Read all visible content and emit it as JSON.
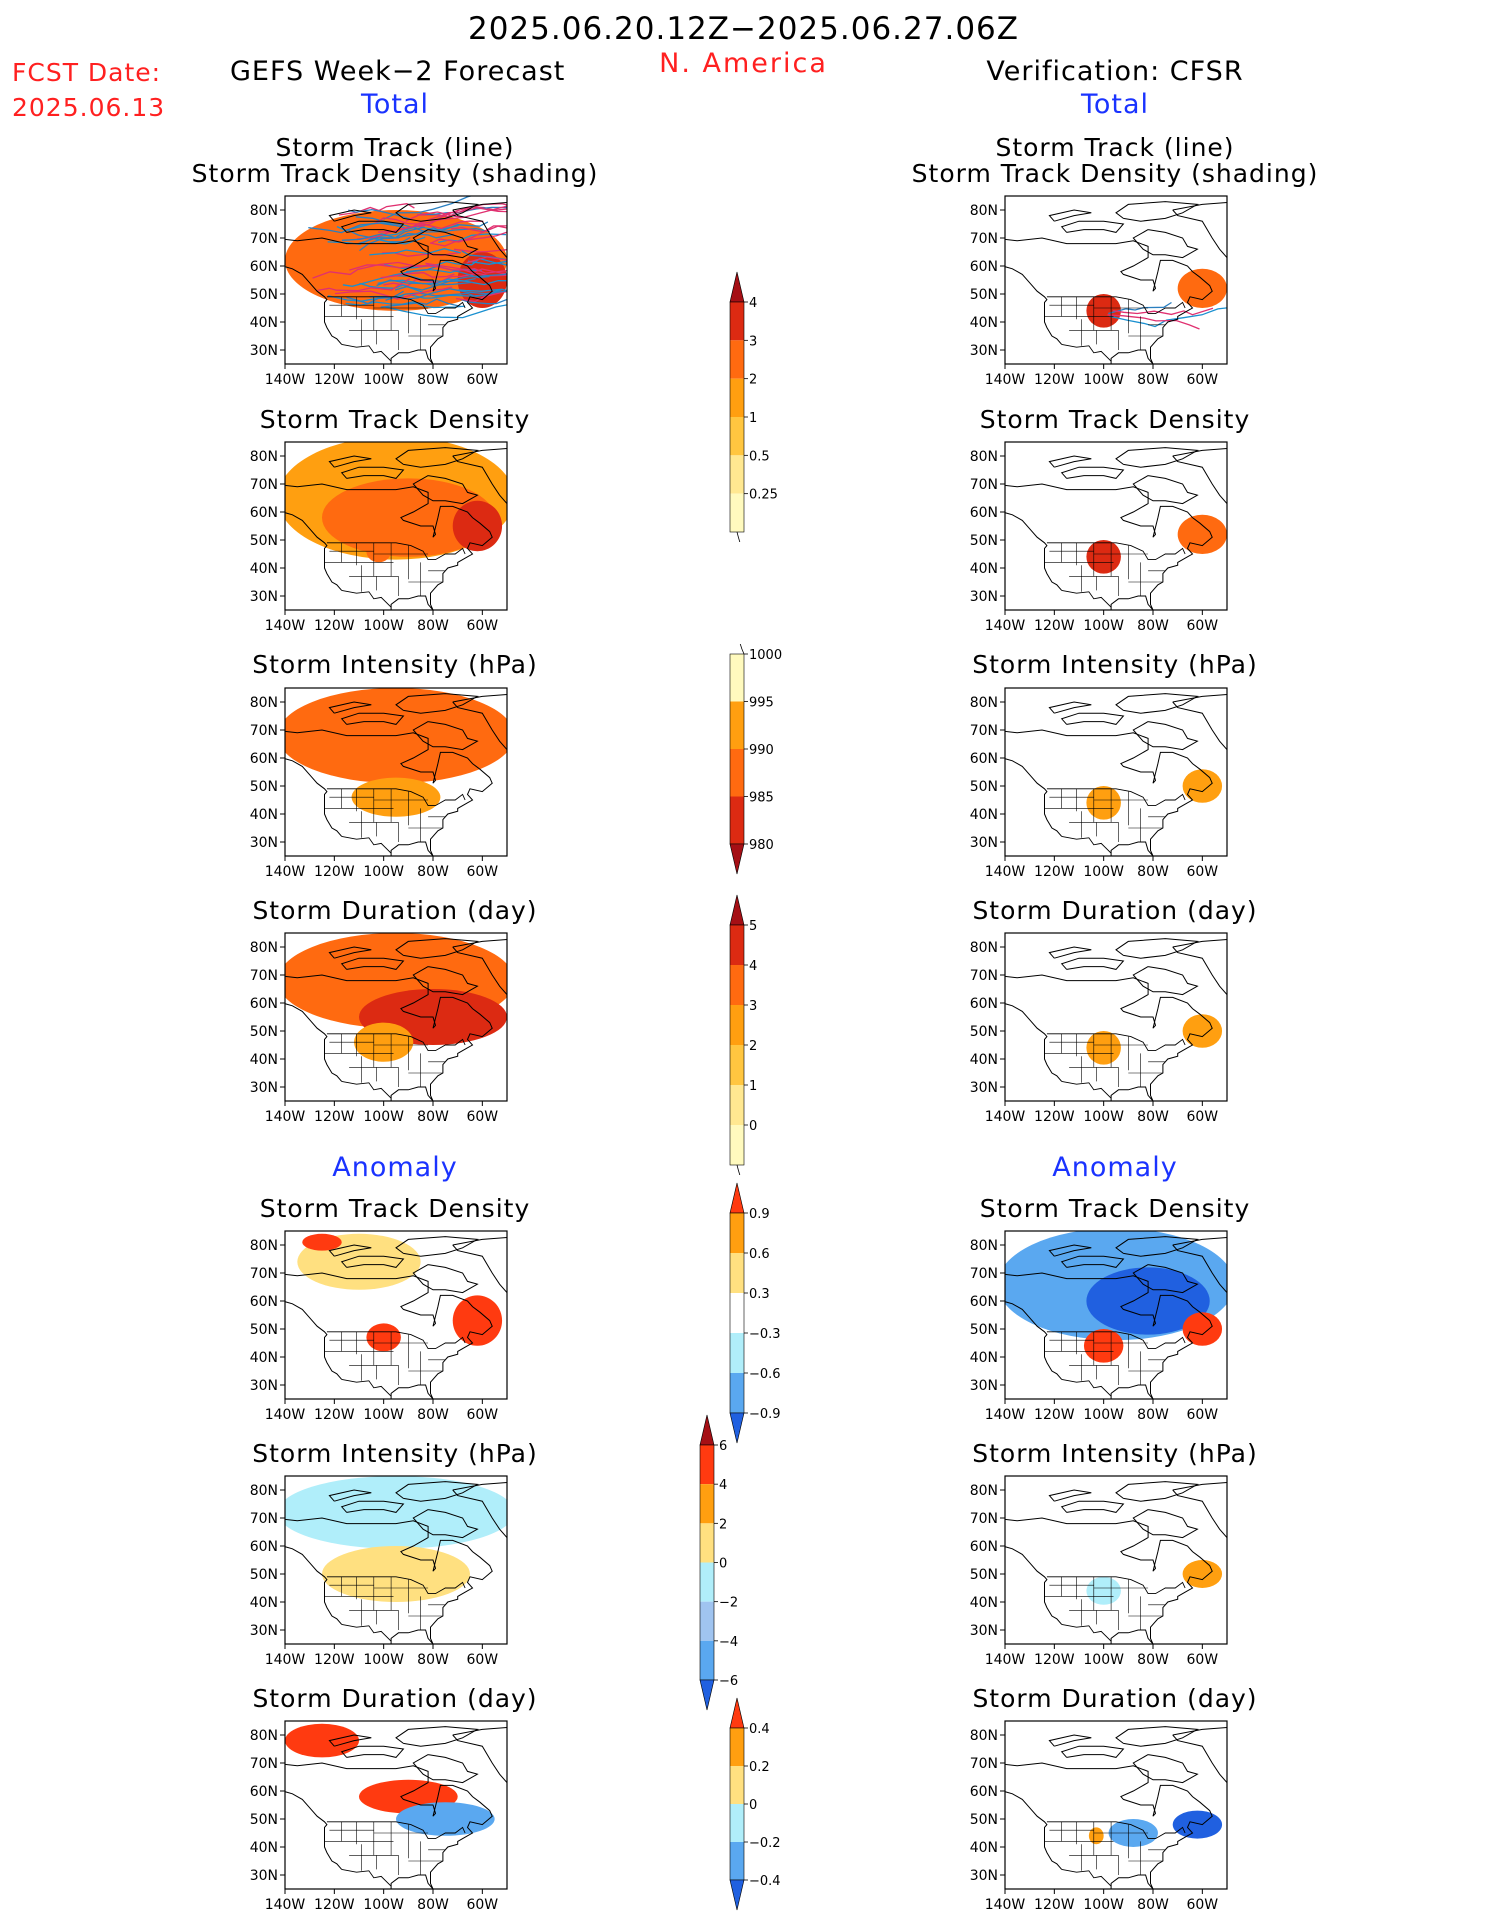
{
  "header": {
    "time_range": "2025.06.20.12Z−2025.06.27.06Z",
    "fcst_label": "FCST Date:",
    "fcst_date": "2025.06.13",
    "region": "N. America",
    "left_title": "GEFS Week−2 Forecast",
    "right_title": "Verification: CFSR",
    "total_label": "Total",
    "anomaly_label": "Anomaly"
  },
  "axes": {
    "lat_ticks": [
      "80N",
      "70N",
      "60N",
      "50N",
      "40N",
      "30N"
    ],
    "lon_ticks": [
      "140W",
      "120W",
      "100W",
      "80W",
      "60W"
    ]
  },
  "panel_titles": {
    "storm_track_line": "Storm Track (line)",
    "storm_track_density_shading": "Storm Track Density (shading)",
    "storm_track_density": "Storm Track Density",
    "storm_intensity": "Storm Intensity (hPa)",
    "storm_duration": "Storm Duration (day)"
  },
  "colorbars": [
    {
      "id": "density_total",
      "labels": [
        "4",
        "3",
        "2",
        "1",
        "0.5",
        "0.25"
      ],
      "colors": [
        "#a50f15",
        "#dc2a12",
        "#ff6a10",
        "#ff9f10",
        "#ffc640",
        "#ffe891",
        "#fffabe"
      ],
      "extend": "max"
    },
    {
      "id": "intensity_total",
      "labels": [
        "1000",
        "995",
        "990",
        "985",
        "980"
      ],
      "colors": [
        "#fffabe",
        "#ff9f10",
        "#ff6a10",
        "#dc2a12",
        "#a50f15"
      ],
      "extend": "min"
    },
    {
      "id": "duration_total",
      "labels": [
        "5",
        "4",
        "3",
        "2",
        "1",
        "0"
      ],
      "colors": [
        "#a50f15",
        "#dc2a12",
        "#ff6a10",
        "#ff9f10",
        "#ffc640",
        "#ffe891",
        "#fffabe"
      ],
      "extend": "max"
    },
    {
      "id": "density_anom",
      "labels": [
        "0.9",
        "0.6",
        "0.3",
        "−0.3",
        "−0.6",
        "−0.9"
      ],
      "colors": [
        "#ff3a10",
        "#ff9f10",
        "#ffe080",
        "#ffffff",
        "#b0eefa",
        "#5aa8f0",
        "#2060e0"
      ],
      "extend": "both"
    },
    {
      "id": "intensity_anom",
      "labels": [
        "6",
        "4",
        "2",
        "0",
        "−2",
        "−4",
        "−6"
      ],
      "colors": [
        "#a50f15",
        "#ff3a10",
        "#ff9f10",
        "#ffe080",
        "#b0eefa",
        "#a0c4f0",
        "#5aa8f0",
        "#2060e0"
      ],
      "extend": "both"
    },
    {
      "id": "duration_anom",
      "labels": [
        "0.4",
        "0.2",
        "0",
        "−0.2",
        "−0.4"
      ],
      "colors": [
        "#ff3a10",
        "#ff9f10",
        "#ffe080",
        "#b0eefa",
        "#5aa8f0",
        "#2060e0"
      ],
      "extend": "both"
    }
  ],
  "chart_data": [
    {
      "type": "heatmap",
      "title": "Storm Track (line) Storm Track Density (shading)",
      "column": "GEFS Week−2 Forecast",
      "section": "Total",
      "xlim": [
        -140,
        -50
      ],
      "ylim": [
        25,
        85
      ],
      "regions": [
        {
          "lon": -95,
          "lat": 62,
          "rx": 45,
          "ry": 18,
          "value": 2
        },
        {
          "lon": -60,
          "lat": 55,
          "rx": 10,
          "ry": 10,
          "value": 3
        }
      ],
      "tracks": "many"
    },
    {
      "type": "heatmap",
      "title": "Storm Track Density",
      "column": "GEFS Week−2 Forecast",
      "section": "Total",
      "xlim": [
        -140,
        -50
      ],
      "ylim": [
        25,
        85
      ],
      "regions": [
        {
          "lon": -95,
          "lat": 65,
          "rx": 48,
          "ry": 22,
          "value": 1.5
        },
        {
          "lon": -90,
          "lat": 58,
          "rx": 35,
          "ry": 14,
          "value": 2.5
        },
        {
          "lon": -62,
          "lat": 55,
          "rx": 10,
          "ry": 9,
          "value": 3.5
        },
        {
          "lon": -102,
          "lat": 46,
          "rx": 5,
          "ry": 4,
          "value": 2.5
        }
      ]
    },
    {
      "type": "heatmap",
      "title": "Storm Intensity (hPa)",
      "column": "GEFS Week−2 Forecast",
      "section": "Total",
      "xlim": [
        -140,
        -50
      ],
      "ylim": [
        25,
        85
      ],
      "regions": [
        {
          "lon": -95,
          "lat": 68,
          "rx": 48,
          "ry": 17,
          "value": 992
        },
        {
          "lon": -95,
          "lat": 46,
          "rx": 18,
          "ry": 7,
          "value": 997
        }
      ]
    },
    {
      "type": "heatmap",
      "title": "Storm Duration (day)",
      "column": "GEFS Week−2 Forecast",
      "section": "Total",
      "xlim": [
        -140,
        -50
      ],
      "ylim": [
        25,
        85
      ],
      "regions": [
        {
          "lon": -95,
          "lat": 68,
          "rx": 48,
          "ry": 17,
          "value": 3.5
        },
        {
          "lon": -80,
          "lat": 55,
          "rx": 30,
          "ry": 10,
          "value": 4.2
        },
        {
          "lon": -100,
          "lat": 46,
          "rx": 12,
          "ry": 7,
          "value": 2.5
        }
      ]
    },
    {
      "type": "heatmap",
      "title": "Storm Track Density",
      "column": "GEFS Week−2 Forecast",
      "section": "Anomaly",
      "xlim": [
        -140,
        -50
      ],
      "ylim": [
        25,
        85
      ],
      "regions": [
        {
          "lon": -110,
          "lat": 74,
          "rx": 25,
          "ry": 10,
          "value": 0.45
        },
        {
          "lon": -125,
          "lat": 81,
          "rx": 8,
          "ry": 3,
          "value": 1.0
        },
        {
          "lon": -100,
          "lat": 47,
          "rx": 7,
          "ry": 5,
          "value": 1.0
        },
        {
          "lon": -62,
          "lat": 53,
          "rx": 10,
          "ry": 9,
          "value": 1.0
        }
      ]
    },
    {
      "type": "heatmap",
      "title": "Storm Intensity (hPa)",
      "column": "GEFS Week−2 Forecast",
      "section": "Anomaly",
      "xlim": [
        -140,
        -50
      ],
      "ylim": [
        25,
        85
      ],
      "regions": [
        {
          "lon": -95,
          "lat": 72,
          "rx": 48,
          "ry": 13,
          "value": -1
        },
        {
          "lon": -95,
          "lat": 50,
          "rx": 30,
          "ry": 10,
          "value": 1
        }
      ]
    },
    {
      "type": "heatmap",
      "title": "Storm Duration (day)",
      "column": "GEFS Week−2 Forecast",
      "section": "Anomaly",
      "xlim": [
        -140,
        -50
      ],
      "ylim": [
        25,
        85
      ],
      "regions": [
        {
          "lon": -125,
          "lat": 78,
          "rx": 15,
          "ry": 6,
          "value": 0.5
        },
        {
          "lon": -90,
          "lat": 58,
          "rx": 20,
          "ry": 6,
          "value": 0.5
        },
        {
          "lon": -75,
          "lat": 50,
          "rx": 20,
          "ry": 6,
          "value": -0.3
        }
      ]
    },
    {
      "type": "heatmap",
      "title": "Storm Track (line) Storm Track Density (shading)",
      "column": "Verification: CFSR",
      "section": "Total",
      "xlim": [
        -140,
        -50
      ],
      "ylim": [
        25,
        85
      ],
      "regions": [
        {
          "lon": -100,
          "lat": 44,
          "rx": 7,
          "ry": 6,
          "value": 3.5
        },
        {
          "lon": -60,
          "lat": 52,
          "rx": 10,
          "ry": 7,
          "value": 2
        }
      ],
      "tracks": "few"
    },
    {
      "type": "heatmap",
      "title": "Storm Track Density",
      "column": "Verification: CFSR",
      "section": "Total",
      "xlim": [
        -140,
        -50
      ],
      "ylim": [
        25,
        85
      ],
      "regions": [
        {
          "lon": -100,
          "lat": 44,
          "rx": 7,
          "ry": 6,
          "value": 3.5
        },
        {
          "lon": -60,
          "lat": 52,
          "rx": 10,
          "ry": 7,
          "value": 2.5
        }
      ]
    },
    {
      "type": "heatmap",
      "title": "Storm Intensity (hPa)",
      "column": "Verification: CFSR",
      "section": "Total",
      "xlim": [
        -140,
        -50
      ],
      "ylim": [
        25,
        85
      ],
      "regions": [
        {
          "lon": -100,
          "lat": 44,
          "rx": 7,
          "ry": 6,
          "value": 997
        },
        {
          "lon": -60,
          "lat": 50,
          "rx": 8,
          "ry": 6,
          "value": 997
        }
      ]
    },
    {
      "type": "heatmap",
      "title": "Storm Duration (day)",
      "column": "Verification: CFSR",
      "section": "Total",
      "xlim": [
        -140,
        -50
      ],
      "ylim": [
        25,
        85
      ],
      "regions": [
        {
          "lon": -100,
          "lat": 44,
          "rx": 7,
          "ry": 6,
          "value": 2.5
        },
        {
          "lon": -60,
          "lat": 50,
          "rx": 8,
          "ry": 6,
          "value": 2.5
        }
      ]
    },
    {
      "type": "heatmap",
      "title": "Storm Track Density",
      "column": "Verification: CFSR",
      "section": "Anomaly",
      "xlim": [
        -140,
        -50
      ],
      "ylim": [
        25,
        85
      ],
      "regions": [
        {
          "lon": -95,
          "lat": 66,
          "rx": 48,
          "ry": 20,
          "value": -0.6
        },
        {
          "lon": -82,
          "lat": 60,
          "rx": 25,
          "ry": 12,
          "value": -1.0
        },
        {
          "lon": -100,
          "lat": 44,
          "rx": 8,
          "ry": 6,
          "value": 1.0
        },
        {
          "lon": -60,
          "lat": 50,
          "rx": 8,
          "ry": 6,
          "value": 1.0
        }
      ]
    },
    {
      "type": "heatmap",
      "title": "Storm Intensity (hPa)",
      "column": "Verification: CFSR",
      "section": "Anomaly",
      "xlim": [
        -140,
        -50
      ],
      "ylim": [
        25,
        85
      ],
      "regions": [
        {
          "lon": -100,
          "lat": 44,
          "rx": 7,
          "ry": 5,
          "value": -1
        },
        {
          "lon": -60,
          "lat": 50,
          "rx": 8,
          "ry": 5,
          "value": 3
        }
      ]
    },
    {
      "type": "heatmap",
      "title": "Storm Duration (day)",
      "column": "Verification: CFSR",
      "section": "Anomaly",
      "xlim": [
        -140,
        -50
      ],
      "ylim": [
        25,
        85
      ],
      "regions": [
        {
          "lon": -88,
          "lat": 45,
          "rx": 10,
          "ry": 5,
          "value": -0.3
        },
        {
          "lon": -62,
          "lat": 48,
          "rx": 10,
          "ry": 5,
          "value": -0.5
        },
        {
          "lon": -103,
          "lat": 44,
          "rx": 3,
          "ry": 3,
          "value": 0.3
        }
      ]
    }
  ]
}
